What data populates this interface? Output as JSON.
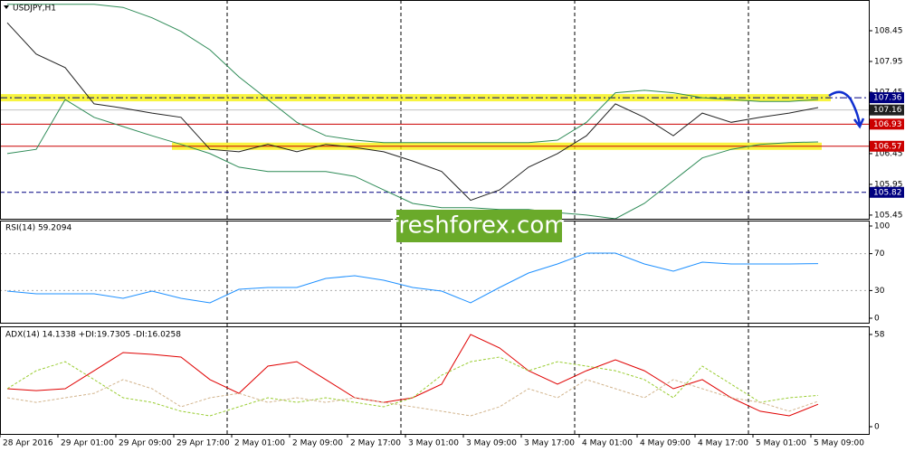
{
  "chart_data": [
    {
      "type": "line",
      "title": "USDJPY,H1",
      "x": [
        1,
        5,
        9,
        13,
        17,
        21,
        25,
        29,
        33,
        37,
        41,
        45,
        49,
        53,
        57,
        61,
        65,
        69,
        73,
        77,
        81,
        85,
        89,
        93,
        97,
        101,
        105,
        109,
        113
      ],
      "xlim": [
        0,
        120
      ],
      "ylim": [
        105.39,
        108.95
      ],
      "yticks": [
        105.45,
        105.95,
        106.45,
        107.45,
        107.95,
        108.45
      ],
      "series": [
        {
          "color": "#2e8b57",
          "values": [
            108.88,
            108.88,
            108.88,
            108.88,
            108.83,
            108.66,
            108.44,
            108.14,
            107.7,
            107.33,
            106.96,
            106.74,
            106.67,
            106.63,
            106.63,
            106.63,
            106.63,
            106.63,
            106.63,
            106.67,
            106.96,
            107.44,
            107.48,
            107.44,
            107.36,
            107.33,
            107.3,
            107.3,
            107.33
          ]
        },
        {
          "color": "#2e8b57",
          "values": [
            106.45,
            106.52,
            107.33,
            107.04,
            106.89,
            106.74,
            106.6,
            106.45,
            106.23,
            106.16,
            106.16,
            106.16,
            106.08,
            105.86,
            105.64,
            105.57,
            105.57,
            105.54,
            105.54,
            105.49,
            105.45,
            105.39,
            105.64,
            106.01,
            106.38,
            106.52,
            106.6,
            106.63,
            106.64
          ]
        },
        {
          "color": "#222222",
          "values": [
            108.58,
            108.07,
            107.85,
            107.26,
            107.19,
            107.11,
            107.04,
            106.52,
            106.48,
            106.6,
            106.48,
            106.6,
            106.55,
            106.48,
            106.33,
            106.16,
            105.69,
            105.86,
            106.23,
            106.45,
            106.74,
            107.26,
            107.04,
            106.74,
            107.11,
            106.96,
            107.04,
            107.11,
            107.2
          ]
        }
      ],
      "zones": [
        {
          "value": 107.36,
          "color": "#f5f000"
        },
        {
          "value": 106.57,
          "color": "#f5f000"
        }
      ],
      "levels": [
        {
          "value": 107.36,
          "color": "#000080",
          "dash": "8 3 2 3"
        },
        {
          "value": 107.16,
          "color": "#c0c0c0",
          "dash": "none",
          "box": "#202020"
        },
        {
          "value": 106.93,
          "color": "#cc0000",
          "dash": "none"
        },
        {
          "value": 106.57,
          "color": "#cc0000",
          "dash": "none"
        },
        {
          "value": 105.82,
          "color": "#000080",
          "dash": "5 3"
        }
      ],
      "watermark": "freshforex.com"
    },
    {
      "type": "line",
      "title": "RSI(14) 59.2094",
      "x": [
        1,
        5,
        9,
        13,
        17,
        21,
        25,
        29,
        33,
        37,
        41,
        45,
        49,
        53,
        57,
        61,
        65,
        69,
        73,
        77,
        81,
        85,
        89,
        93,
        97,
        101,
        105,
        109,
        113
      ],
      "xlim": [
        0,
        120
      ],
      "ylim": [
        0,
        100
      ],
      "yticks": [
        0,
        30,
        70,
        100
      ],
      "levels": [
        30,
        70
      ],
      "series": [
        {
          "color": "#1e90ff",
          "values": [
            29.4,
            26.5,
            26.5,
            26.5,
            21.6,
            29.4,
            21.6,
            16.7,
            31.4,
            33.3,
            33.3,
            43.1,
            46.1,
            41.2,
            33.3,
            29.4,
            16.7,
            33.3,
            49.0,
            58.8,
            70.6,
            70.6,
            58.8,
            51.0,
            60.8,
            58.8,
            58.8,
            58.8,
            59.2
          ]
        }
      ]
    },
    {
      "type": "line",
      "title": "ADX(14) 14.1338 +DI:19.7305 -DI:16.0258",
      "x": [
        1,
        5,
        9,
        13,
        17,
        21,
        25,
        29,
        33,
        37,
        41,
        45,
        49,
        53,
        57,
        61,
        65,
        69,
        73,
        77,
        81,
        85,
        89,
        93,
        97,
        101,
        105,
        109,
        113
      ],
      "xlim": [
        0,
        120
      ],
      "ylim": [
        0,
        58
      ],
      "yticks": [
        0,
        58
      ],
      "xticks": [
        {
          "value": 0,
          "label": "28 Apr 2016"
        },
        {
          "value": 8,
          "label": "29 Apr 01:00"
        },
        {
          "value": 16,
          "label": "29 Apr 09:00"
        },
        {
          "value": 24,
          "label": "29 Apr 17:00"
        },
        {
          "value": 32,
          "label": "2 May 01:00"
        },
        {
          "value": 40,
          "label": "2 May 09:00"
        },
        {
          "value": 48,
          "label": "2 May 17:00"
        },
        {
          "value": 56,
          "label": "3 May 01:00"
        },
        {
          "value": 64,
          "label": "3 May 09:00"
        },
        {
          "value": 72,
          "label": "3 May 17:00"
        },
        {
          "value": 80,
          "label": "4 May 01:00"
        },
        {
          "value": 88,
          "label": "4 May 09:00"
        },
        {
          "value": 96,
          "label": "4 May 17:00"
        },
        {
          "value": 104,
          "label": "5 May 01:00"
        },
        {
          "value": 112,
          "label": "5 May 09:00"
        }
      ],
      "series": [
        {
          "color": "#e00000",
          "dash": "none",
          "values": [
            23.9,
            22.7,
            23.9,
            35.2,
            46.6,
            45.5,
            43.8,
            29.6,
            21.0,
            38.1,
            40.9,
            29.6,
            18.2,
            15.3,
            18.2,
            26.7,
            58.0,
            49.5,
            35.2,
            26.7,
            35.2,
            42.1,
            35.2,
            23.9,
            29.6,
            18.2,
            9.7,
            6.8,
            14.1
          ]
        },
        {
          "color": "#9acd32",
          "dash": "3 2",
          "values": [
            23.9,
            35.2,
            40.9,
            29.6,
            18.2,
            15.3,
            9.7,
            6.8,
            12.5,
            18.2,
            15.3,
            18.2,
            15.3,
            12.5,
            18.2,
            32.4,
            40.9,
            43.8,
            35.2,
            40.9,
            38.1,
            35.2,
            29.6,
            18.2,
            38.1,
            26.7,
            15.3,
            18.2,
            19.7
          ]
        },
        {
          "color": "#d2b48c",
          "dash": "3 2",
          "values": [
            18.2,
            15.3,
            18.2,
            21.0,
            29.6,
            23.9,
            12.5,
            18.2,
            21.0,
            15.3,
            18.2,
            15.3,
            18.2,
            15.3,
            12.5,
            9.7,
            6.8,
            12.5,
            23.9,
            18.2,
            29.6,
            23.9,
            18.2,
            29.6,
            23.9,
            18.2,
            15.3,
            9.7,
            16.0
          ]
        }
      ]
    }
  ]
}
